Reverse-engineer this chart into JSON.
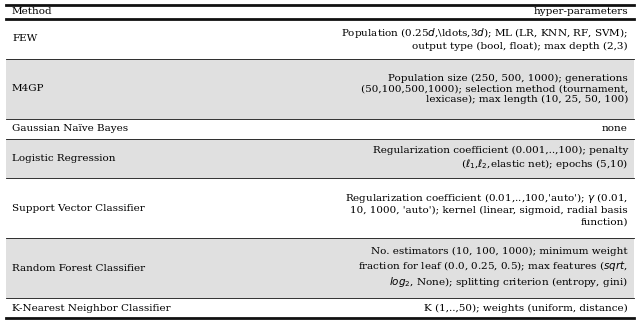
{
  "title_col1": "Method",
  "title_col2": "hyper-parameters",
  "rows": [
    {
      "method": "FEW",
      "params": "Population (0.25$d$,\\ldots,3$d$); ML (LR, KNN, RF, SVM);\noutput type (bool, float); max depth (2,3)",
      "n_lines": 2,
      "shaded": false
    },
    {
      "method": "M4GP",
      "params": "Population size (250, 500, 1000); generations\n(50,100,500,1000); selection method (tournament,\nlexicase); max length (10, 25, 50, 100)",
      "n_lines": 3,
      "shaded": true
    },
    {
      "method": "Gaussian Naïve Bayes",
      "params": "none",
      "n_lines": 1,
      "shaded": false
    },
    {
      "method": "Logistic Regression",
      "params": "Regularization coefficient (0.001,..,100); penalty\n($\\ell_1$,$\\ell_2$,elastic net); epochs (5,10)",
      "n_lines": 2,
      "shaded": true
    },
    {
      "method": "Support Vector Classifier",
      "params": "Regularization coefficient (0.01,..,100,'auto'); $\\gamma$ (0.01,\n10, 1000, 'auto'); kernel (linear, sigmoid, radial basis\nfunction)",
      "n_lines": 3,
      "shaded": false
    },
    {
      "method": "Random Forest Classifier",
      "params": "No. estimators (10, 100, 1000); minimum weight\nfraction for leaf (0.0, 0.25, 0.5); max features ($\\mathit{sqrt}$,\n$\\mathit{log_2}$, None); splitting criterion (entropy, gini)",
      "n_lines": 3,
      "shaded": true
    },
    {
      "method": "K-Nearest Neighbor Classifier",
      "params": "K (1,..,50); weights (uniform, distance)",
      "n_lines": 1,
      "shaded": false
    }
  ],
  "bg_color": "#ffffff",
  "shade_color": "#e0e0e0",
  "header_color": "#ffffff",
  "text_color": "#000000",
  "border_color": "#111111",
  "fontsize": 7.5,
  "figsize": [
    6.4,
    3.25
  ],
  "dpi": 100
}
